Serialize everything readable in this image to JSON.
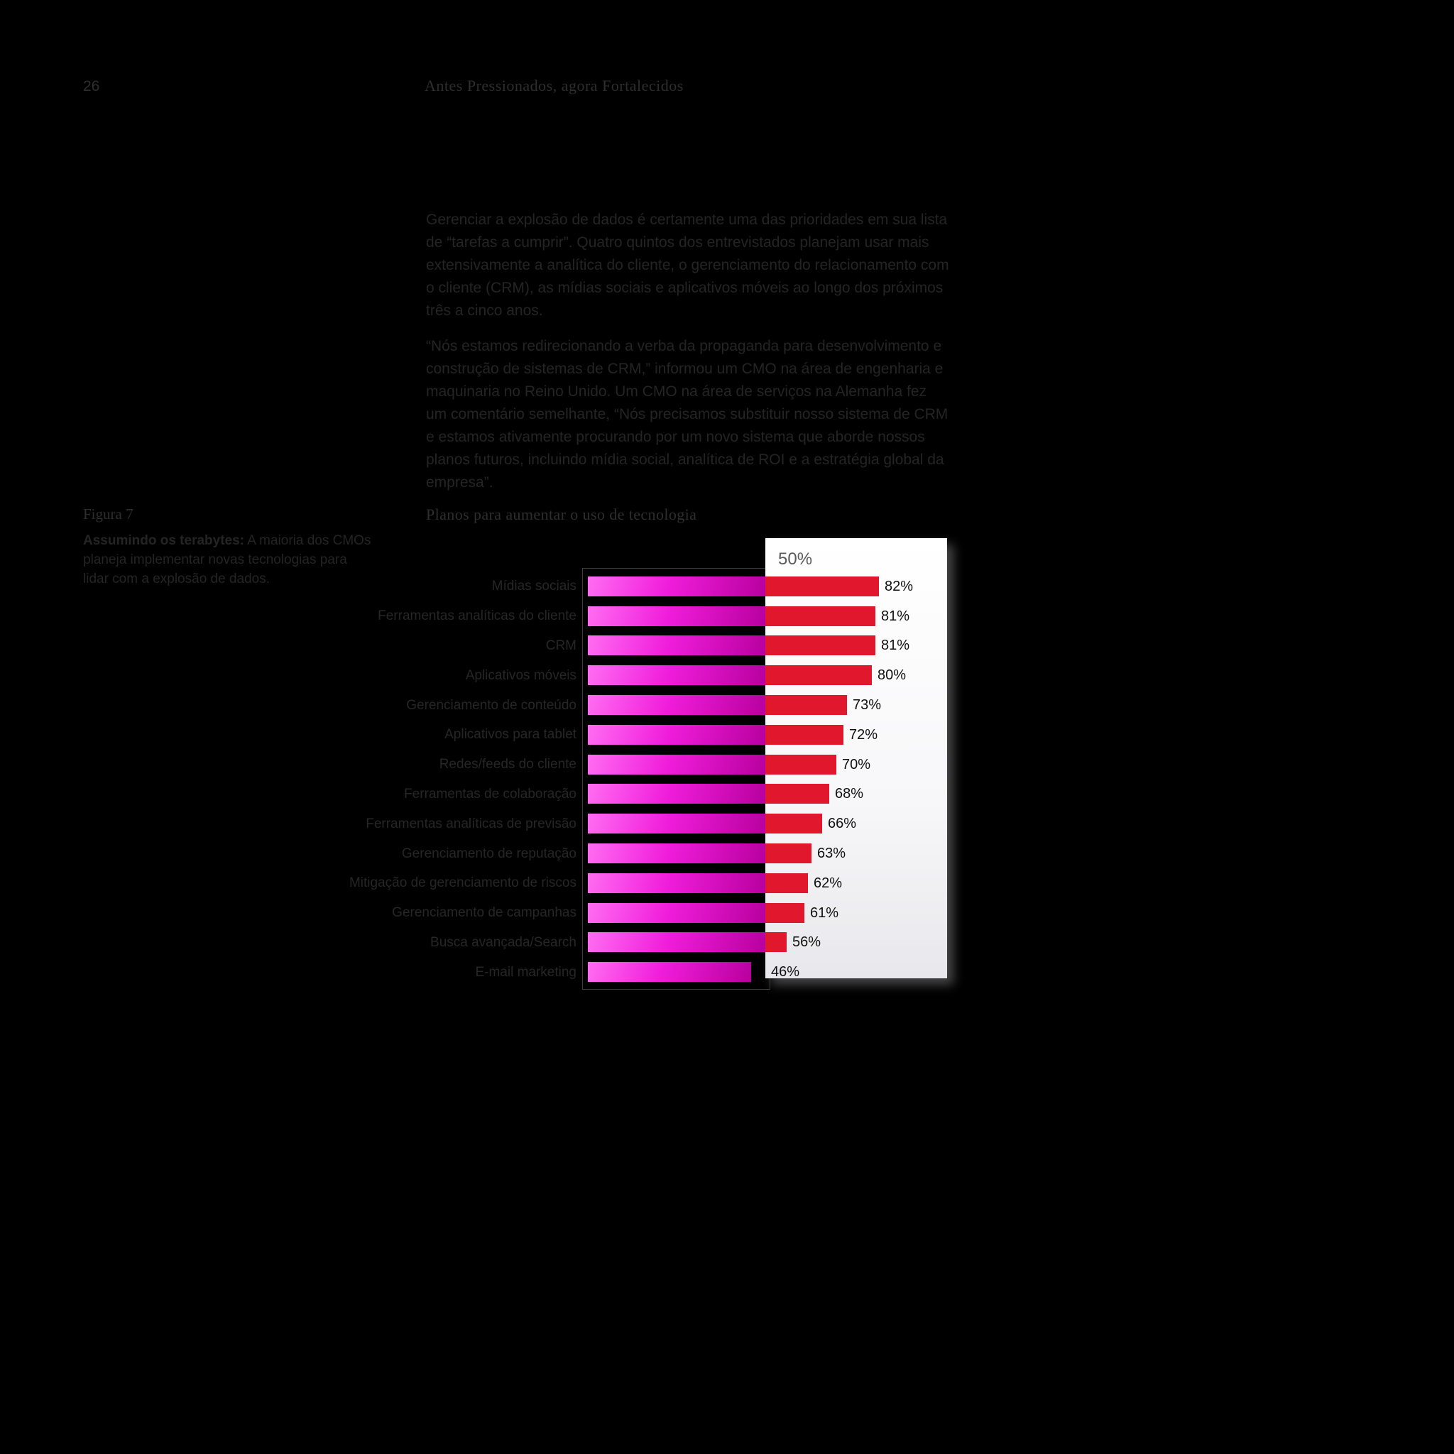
{
  "page": {
    "number": "26",
    "header_title": "Antes Pressionados, agora Fortalecidos"
  },
  "article": {
    "paragraph_1": "Gerenciar a explosão de dados é certamente uma das prioridades em sua lista de “tarefas a cumprir”. Quatro quintos dos entrevistados planejam usar mais extensivamente a analítica do cliente, o gerenciamento do relacionamento com o cliente (CRM), as mídias sociais e aplicativos móveis ao longo dos próximos três a cinco anos.",
    "paragraph_2": "“Nós estamos redirecionando a verba da propaganda para desenvolvimento e construção de sistemas de CRM,” informou um CMO na área de engenharia e maquinaria no Reino Unido. Um CMO na área de serviços na Alemanha fez um comentário semelhante, “Nós precisamos substituir nosso sistema de CRM e estamos ativamente procurando por um novo sistema que aborde nossos planos futuros, incluindo mídia social, analítica de ROI e a estratégia global da empresa”."
  },
  "figure": {
    "label": "Figura 7",
    "caption_lead": "Assumindo os terabytes:",
    "caption_text": " A maioria dos CMOs planeja implementar novas tecnologias para lidar com a explosão de dados."
  },
  "chart_data": {
    "type": "bar",
    "orientation": "horizontal",
    "title": "Planos para aumentar o uso de tecnologia",
    "threshold_label": "50%",
    "threshold_value": 50,
    "xlim": [
      0,
      100
    ],
    "unit": "%",
    "grid": false,
    "legend_position": "none",
    "categories": [
      "Mídias sociais",
      "Ferramentas analíticas do cliente",
      "CRM",
      "Aplicativos móveis",
      "Gerenciamento de conteúdo",
      "Aplicativos para tablet",
      "Redes/feeds do cliente",
      "Ferramentas de colaboração",
      "Ferramentas analíticas de previsão",
      "Gerenciamento de reputação",
      "Mitigação de gerenciamento de riscos",
      "Gerenciamento de campanhas",
      "Busca avançada/Search",
      "E-mail marketing"
    ],
    "values": [
      82,
      81,
      81,
      80,
      73,
      72,
      70,
      68,
      66,
      63,
      62,
      61,
      56,
      46
    ],
    "value_labels": [
      "82%",
      "81%",
      "81%",
      "80%",
      "73%",
      "72%",
      "70%",
      "68%",
      "66%",
      "63%",
      "62%",
      "61%",
      "56%",
      "46%"
    ],
    "colors": {
      "bar_below_threshold": "#e013cf",
      "bar_above_threshold": "#e1182d",
      "panel": "#ffffff",
      "background": "#000000",
      "value_text": "#101010"
    }
  }
}
